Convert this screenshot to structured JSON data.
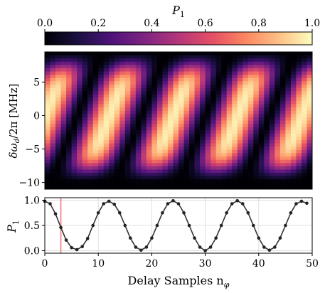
{
  "chart_data": [
    {
      "type": "colorbar",
      "label": "P_1",
      "label_base": "P",
      "label_sub": "1",
      "ticks": [
        0.0,
        0.2,
        0.4,
        0.6,
        0.8,
        1.0
      ],
      "tick_labels": [
        "0.0",
        "0.2",
        "0.4",
        "0.6",
        "0.8",
        "1.0"
      ],
      "range": [
        0,
        1
      ],
      "colormap": "magma"
    },
    {
      "type": "heatmap",
      "ylabel": "δω_d/2π [MHz]",
      "ylabel_main": "δω",
      "ylabel_sub": "d",
      "ylabel_tail": "/2π [MHz]",
      "xlim": [
        0,
        50
      ],
      "ylim": [
        -11,
        9.5
      ],
      "yticks": [
        5,
        0,
        -5,
        -10
      ],
      "ytick_labels": [
        "5",
        "0",
        "−5",
        "−10"
      ],
      "x_columns": 50,
      "y_rows": 42,
      "detuning_min_mhz": -10.5,
      "detuning_max_mhz": 9.5,
      "fringe_period_samples": 12,
      "fringe_slope_samples_per_mhz": 0.5,
      "colormap": "magma"
    },
    {
      "type": "line",
      "ylabel": "P_1",
      "ylabel_base": "P",
      "ylabel_sub": "1",
      "xlabel": "Delay Samples n_φ",
      "xlabel_main": "Delay Samples n",
      "xlabel_sub": "φ",
      "xlim": [
        0,
        50
      ],
      "ylim": [
        -0.05,
        1.05
      ],
      "xticks": [
        0,
        10,
        20,
        30,
        40,
        50
      ],
      "xtick_labels": [
        "0",
        "10",
        "20",
        "30",
        "40",
        "50"
      ],
      "yticks": [
        0.0,
        0.5,
        1.0
      ],
      "ytick_labels": [
        "0.0",
        "0.5",
        "1.0"
      ],
      "grid": true,
      "vline_x": 3,
      "vline_color": "#f07a7a",
      "line_color": "#333333",
      "x": [
        0,
        1,
        2,
        3,
        4,
        5,
        6,
        7,
        8,
        9,
        10,
        11,
        12,
        13,
        14,
        15,
        16,
        17,
        18,
        19,
        20,
        21,
        22,
        23,
        24,
        25,
        26,
        27,
        28,
        29,
        30,
        31,
        32,
        33,
        34,
        35,
        36,
        37,
        38,
        39,
        40,
        41,
        42,
        43,
        44,
        45,
        46,
        47,
        48,
        49
      ],
      "y": [
        0.98,
        0.93,
        0.73,
        0.46,
        0.21,
        0.06,
        0.02,
        0.08,
        0.24,
        0.5,
        0.75,
        0.93,
        0.98,
        0.92,
        0.75,
        0.5,
        0.25,
        0.07,
        0.01,
        0.07,
        0.25,
        0.5,
        0.75,
        0.93,
        0.99,
        0.93,
        0.75,
        0.5,
        0.25,
        0.07,
        0.0,
        0.07,
        0.25,
        0.5,
        0.75,
        0.93,
        0.99,
        0.93,
        0.75,
        0.5,
        0.25,
        0.07,
        0.01,
        0.07,
        0.25,
        0.5,
        0.75,
        0.93,
        0.98,
        0.94
      ]
    }
  ]
}
